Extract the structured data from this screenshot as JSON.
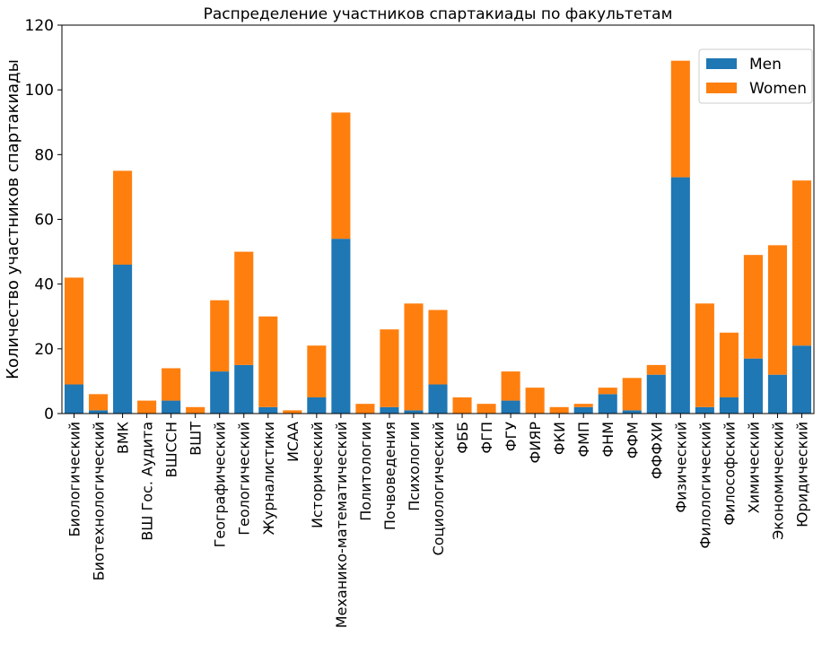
{
  "chart_data": {
    "type": "bar",
    "stacked": true,
    "title": "Распределение участников спартакиады по факультетам",
    "ylabel": "Количество участников спартакиады",
    "xlabel": "",
    "ylim": [
      0,
      120
    ],
    "yticks": [
      0,
      20,
      40,
      60,
      80,
      100,
      120
    ],
    "grid": false,
    "legend_position": "top-right",
    "categories": [
      "Биологический",
      "Биотехнологический",
      "ВМК",
      "ВШ Гос. Аудита",
      "ВШССН",
      "ВШТ",
      "Географический",
      "Геологический",
      "Журналистики",
      "ИСАА",
      "Исторический",
      "Механико-математический",
      "Политологии",
      "Почвоведения",
      "Психологии",
      "Социологический",
      "ФББ",
      "ФГП",
      "ФГУ",
      "ФИЯР",
      "ФКИ",
      "ФМП",
      "ФНМ",
      "ФФМ",
      "ФФФХИ",
      "Физический",
      "Филологический",
      "Философский",
      "Химический",
      "Экономический",
      "Юридический"
    ],
    "series": [
      {
        "name": "Men",
        "color": "#1f77b4",
        "values": [
          9,
          1,
          46,
          0,
          4,
          0,
          13,
          15,
          2,
          0,
          5,
          54,
          0,
          2,
          1,
          9,
          0,
          0,
          4,
          0,
          0,
          2,
          6,
          1,
          12,
          73,
          2,
          5,
          17,
          12,
          21
        ]
      },
      {
        "name": "Women",
        "color": "#ff7f0e",
        "values": [
          33,
          5,
          29,
          4,
          10,
          2,
          22,
          35,
          28,
          1,
          16,
          39,
          3,
          24,
          33,
          23,
          5,
          3,
          9,
          8,
          2,
          1,
          2,
          10,
          3,
          36,
          32,
          20,
          32,
          40,
          51
        ]
      }
    ]
  }
}
